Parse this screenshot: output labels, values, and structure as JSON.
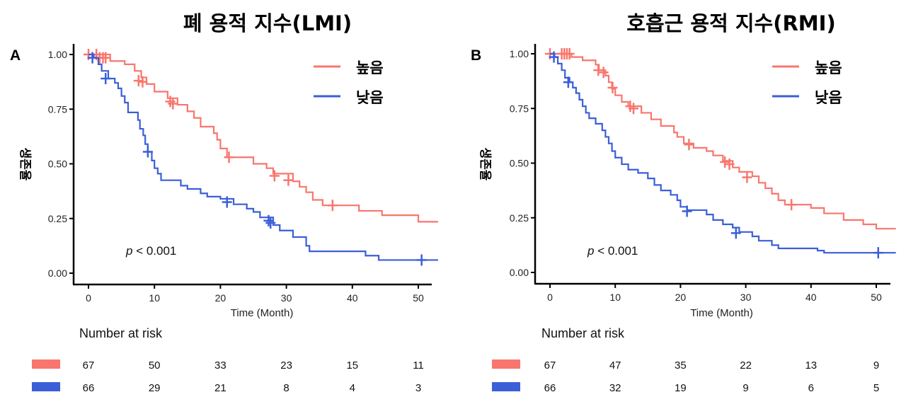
{
  "chart_data": [
    {
      "type": "line",
      "subtype": "kaplan-meier",
      "panel": "A",
      "title": "폐 용적 지수(LMI)",
      "xlabel": "Time (Month)",
      "ylabel": "생존율",
      "xlim": [
        -2,
        53
      ],
      "ylim": [
        0,
        1
      ],
      "xticks": [
        0,
        10,
        20,
        30,
        40,
        50
      ],
      "yticks": [
        0,
        0.25,
        0.5,
        0.75,
        1.0
      ],
      "ytick_labels": [
        "0.00",
        "0.25",
        "0.50",
        "0.75",
        "1.00"
      ],
      "grid": false,
      "legend_position": "top-right",
      "annotation": {
        "italic": "p",
        "text": " < 0.001"
      },
      "series": [
        {
          "name": "높음",
          "color": "#F8766D",
          "steps": [
            [
              0,
              1.0
            ],
            [
              3.3,
              0.97
            ],
            [
              5.5,
              0.955
            ],
            [
              7,
              0.925
            ],
            [
              8,
              0.895
            ],
            [
              8.8,
              0.865
            ],
            [
              10,
              0.83
            ],
            [
              12,
              0.8
            ],
            [
              13.5,
              0.77
            ],
            [
              15,
              0.74
            ],
            [
              16,
              0.71
            ],
            [
              17,
              0.67
            ],
            [
              19,
              0.64
            ],
            [
              19.5,
              0.61
            ],
            [
              20,
              0.57
            ],
            [
              21,
              0.53
            ],
            [
              25,
              0.5
            ],
            [
              27,
              0.48
            ],
            [
              28,
              0.455
            ],
            [
              31,
              0.42
            ],
            [
              32,
              0.395
            ],
            [
              33,
              0.37
            ],
            [
              34,
              0.335
            ],
            [
              35.5,
              0.31
            ],
            [
              41,
              0.285
            ],
            [
              44.5,
              0.265
            ],
            [
              50,
              0.235
            ],
            [
              53,
              0.235
            ]
          ],
          "censors": [
            [
              0,
              1.0
            ],
            [
              1.2,
              1.0
            ],
            [
              1.7,
              0.985
            ],
            [
              2.2,
              0.985
            ],
            [
              2.6,
              0.985
            ],
            [
              7.6,
              0.88
            ],
            [
              8.2,
              0.875
            ],
            [
              12.4,
              0.785
            ],
            [
              12.8,
              0.775
            ],
            [
              21.3,
              0.53
            ],
            [
              28.2,
              0.445
            ],
            [
              30.3,
              0.425
            ],
            [
              37,
              0.31
            ]
          ]
        },
        {
          "name": "낮음",
          "color": "#3A5FD8",
          "steps": [
            [
              0,
              1.0
            ],
            [
              0.8,
              0.985
            ],
            [
              1.5,
              0.955
            ],
            [
              2,
              0.925
            ],
            [
              3,
              0.89
            ],
            [
              4,
              0.87
            ],
            [
              4.5,
              0.845
            ],
            [
              5,
              0.81
            ],
            [
              5.5,
              0.78
            ],
            [
              6,
              0.735
            ],
            [
              7.5,
              0.7
            ],
            [
              7.8,
              0.66
            ],
            [
              8.3,
              0.63
            ],
            [
              8.6,
              0.59
            ],
            [
              9,
              0.555
            ],
            [
              9.6,
              0.515
            ],
            [
              10,
              0.48
            ],
            [
              10.5,
              0.455
            ],
            [
              11,
              0.425
            ],
            [
              14,
              0.4
            ],
            [
              15,
              0.385
            ],
            [
              17,
              0.365
            ],
            [
              18,
              0.35
            ],
            [
              20,
              0.34
            ],
            [
              22,
              0.315
            ],
            [
              24,
              0.295
            ],
            [
              25,
              0.28
            ],
            [
              26,
              0.255
            ],
            [
              28,
              0.22
            ],
            [
              29,
              0.195
            ],
            [
              31,
              0.165
            ],
            [
              33,
              0.125
            ],
            [
              33.5,
              0.1
            ],
            [
              42,
              0.08
            ],
            [
              44,
              0.06
            ],
            [
              53,
              0.06
            ]
          ],
          "censors": [
            [
              0.6,
              0.985
            ],
            [
              2.6,
              0.89
            ],
            [
              9,
              0.555
            ],
            [
              21,
              0.325
            ],
            [
              27.3,
              0.24
            ],
            [
              27.6,
              0.23
            ],
            [
              50.5,
              0.06
            ]
          ]
        }
      ],
      "risk_table": {
        "title": "Number at risk",
        "times": [
          0,
          10,
          20,
          30,
          40,
          50
        ],
        "rows": [
          {
            "group": "높음",
            "color": "#F8766D",
            "values": [
              67,
              50,
              33,
              23,
              15,
              11
            ]
          },
          {
            "group": "낮음",
            "color": "#3A5FD8",
            "values": [
              66,
              29,
              21,
              8,
              4,
              3
            ]
          }
        ]
      }
    },
    {
      "type": "line",
      "subtype": "kaplan-meier",
      "panel": "B",
      "title": "호흡근 용적 지수(RMI)",
      "xlabel": "Time (Month)",
      "ylabel": "생존율",
      "xlim": [
        -2,
        53
      ],
      "ylim": [
        0,
        1
      ],
      "xticks": [
        0,
        10,
        20,
        30,
        40,
        50
      ],
      "yticks": [
        0,
        0.25,
        0.5,
        0.75,
        1.0
      ],
      "ytick_labels": [
        "0.00",
        "0.25",
        "0.50",
        "0.75",
        "1.00"
      ],
      "grid": false,
      "legend_position": "top-right",
      "annotation": {
        "italic": "p",
        "text": " < 0.001"
      },
      "series": [
        {
          "name": "높음",
          "color": "#F8766D",
          "steps": [
            [
              0,
              1.0
            ],
            [
              3.3,
              0.985
            ],
            [
              5,
              0.97
            ],
            [
              7,
              0.95
            ],
            [
              7.5,
              0.925
            ],
            [
              8.5,
              0.9
            ],
            [
              9,
              0.87
            ],
            [
              9.5,
              0.84
            ],
            [
              10,
              0.81
            ],
            [
              11,
              0.78
            ],
            [
              12,
              0.76
            ],
            [
              14,
              0.73
            ],
            [
              15.5,
              0.7
            ],
            [
              17,
              0.67
            ],
            [
              19,
              0.64
            ],
            [
              19.5,
              0.62
            ],
            [
              20.5,
              0.59
            ],
            [
              22,
              0.57
            ],
            [
              24,
              0.555
            ],
            [
              25,
              0.535
            ],
            [
              26.5,
              0.51
            ],
            [
              28,
              0.48
            ],
            [
              29,
              0.46
            ],
            [
              31,
              0.44
            ],
            [
              32,
              0.41
            ],
            [
              33,
              0.385
            ],
            [
              34,
              0.36
            ],
            [
              35,
              0.33
            ],
            [
              36,
              0.31
            ],
            [
              40,
              0.295
            ],
            [
              42,
              0.27
            ],
            [
              45,
              0.24
            ],
            [
              48,
              0.22
            ],
            [
              50,
              0.2
            ],
            [
              53,
              0.2
            ]
          ],
          "censors": [
            [
              0,
              1.0
            ],
            [
              1.8,
              1.0
            ],
            [
              2.2,
              1.0
            ],
            [
              2.6,
              1.0
            ],
            [
              3,
              1.0
            ],
            [
              7.4,
              0.925
            ],
            [
              8.2,
              0.915
            ],
            [
              9.6,
              0.845
            ],
            [
              12.3,
              0.76
            ],
            [
              12.8,
              0.75
            ],
            [
              21.3,
              0.585
            ],
            [
              26.8,
              0.505
            ],
            [
              27.5,
              0.495
            ],
            [
              30.2,
              0.435
            ],
            [
              37,
              0.31
            ]
          ]
        },
        {
          "name": "낮음",
          "color": "#3A5FD8",
          "steps": [
            [
              0,
              1.0
            ],
            [
              0.7,
              0.985
            ],
            [
              1.2,
              0.955
            ],
            [
              1.8,
              0.925
            ],
            [
              2.3,
              0.89
            ],
            [
              3,
              0.87
            ],
            [
              3.5,
              0.845
            ],
            [
              4,
              0.82
            ],
            [
              4.5,
              0.79
            ],
            [
              5,
              0.76
            ],
            [
              5.5,
              0.73
            ],
            [
              6,
              0.705
            ],
            [
              7,
              0.68
            ],
            [
              8,
              0.65
            ],
            [
              8.5,
              0.62
            ],
            [
              9,
              0.59
            ],
            [
              9.5,
              0.555
            ],
            [
              10,
              0.525
            ],
            [
              11,
              0.495
            ],
            [
              12,
              0.47
            ],
            [
              13.5,
              0.455
            ],
            [
              15,
              0.43
            ],
            [
              16,
              0.4
            ],
            [
              17,
              0.375
            ],
            [
              18.5,
              0.355
            ],
            [
              19.5,
              0.33
            ],
            [
              20,
              0.3
            ],
            [
              21,
              0.285
            ],
            [
              24,
              0.265
            ],
            [
              25,
              0.24
            ],
            [
              26.5,
              0.22
            ],
            [
              28,
              0.205
            ],
            [
              29,
              0.185
            ],
            [
              31,
              0.165
            ],
            [
              32,
              0.145
            ],
            [
              34,
              0.125
            ],
            [
              35,
              0.11
            ],
            [
              41,
              0.1
            ],
            [
              42,
              0.09
            ],
            [
              53,
              0.09
            ]
          ],
          "censors": [
            [
              0.6,
              0.985
            ],
            [
              2.8,
              0.87
            ],
            [
              21,
              0.28
            ],
            [
              28.5,
              0.18
            ],
            [
              50.3,
              0.09
            ]
          ]
        }
      ],
      "risk_table": {
        "title": "Number at risk",
        "times": [
          0,
          10,
          20,
          30,
          40,
          50
        ],
        "rows": [
          {
            "group": "높음",
            "color": "#F8766D",
            "values": [
              67,
              47,
              35,
              22,
              13,
              9
            ]
          },
          {
            "group": "낮음",
            "color": "#3A5FD8",
            "values": [
              66,
              32,
              19,
              9,
              6,
              5
            ]
          }
        ]
      }
    }
  ]
}
